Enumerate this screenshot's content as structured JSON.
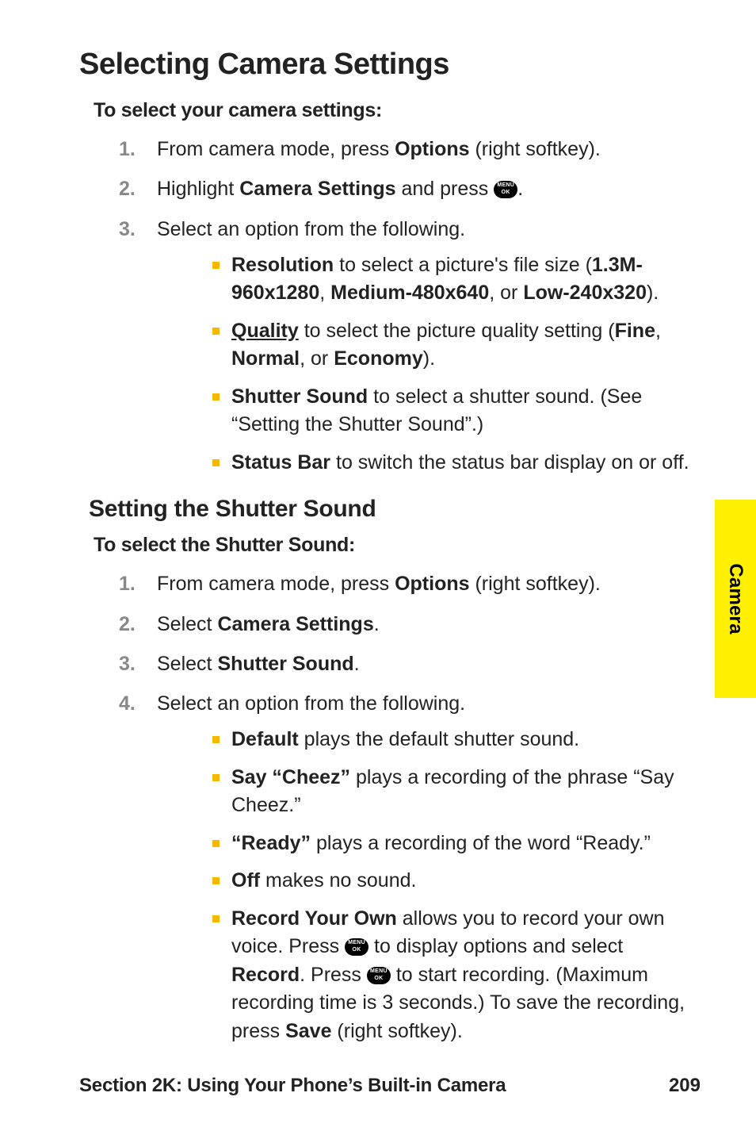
{
  "heading": "Selecting Camera Settings",
  "lead1": "To select your camera settings:",
  "steps1": {
    "s1_pre": "From camera mode, press ",
    "s1_b": "Options",
    "s1_post": " (right softkey).",
    "s2_pre": "Highlight ",
    "s2_b": "Camera Settings",
    "s2_mid": " and press ",
    "s2_post": ".",
    "s3": "Select an option from the following."
  },
  "bullets1": {
    "b1_a": "Resolution",
    "b1_b": " to select a picture's file size (",
    "b1_c": "1.3M-960x1280",
    "b1_d": ", ",
    "b1_e": "Medium-480x640",
    "b1_f": ", or ",
    "b1_g": "Low-240x320",
    "b1_h": ").",
    "b2_a": "Quality",
    "b2_b": " to select the picture quality setting (",
    "b2_c": "Fine",
    "b2_d": ", ",
    "b2_e": "Normal",
    "b2_f": ", or ",
    "b2_g": "Economy",
    "b2_h": ").",
    "b3_a": "Shutter Sound",
    "b3_b": " to select a shutter sound. (See “Setting the Shutter Sound”.)",
    "b4_a": "Status Bar",
    "b4_b": " to switch the status bar display on or off."
  },
  "subheading": "Setting the Shutter Sound",
  "lead2": "To select the Shutter Sound:",
  "steps2": {
    "s1_pre": "From camera mode, press ",
    "s1_b": "Options",
    "s1_post": " (right softkey).",
    "s2_pre": "Select ",
    "s2_b": "Camera Settings",
    "s2_post": ".",
    "s3_pre": "Select ",
    "s3_b": "Shutter Sound",
    "s3_post": ".",
    "s4": "Select an option from the following."
  },
  "bullets2": {
    "b1_a": "Default",
    "b1_b": " plays the default shutter sound.",
    "b2_a": "Say “Cheez”",
    "b2_b": " plays a recording of the phrase “Say Cheez.”",
    "b3_a": "“Ready”",
    "b3_b": " plays a recording of the word “Ready.”",
    "b4_a": "Off",
    "b4_b": " makes no sound.",
    "b5_a": "Record Your Own",
    "b5_b": " allows you to record your own voice. Press ",
    "b5_c": " to display options and select ",
    "b5_d": "Record",
    "b5_e": ". Press ",
    "b5_f": " to start recording. (Maximum recording time is 3 seconds.) To save the recording, press ",
    "b5_g": "Save",
    "b5_h": " (right softkey)."
  },
  "sidetab": "Camera",
  "footer": {
    "section": "Section 2K: Using Your Phone’s Built-in Camera",
    "page": "209"
  },
  "nums": {
    "n1": "1.",
    "n2": "2.",
    "n3": "3.",
    "n4": "4."
  }
}
